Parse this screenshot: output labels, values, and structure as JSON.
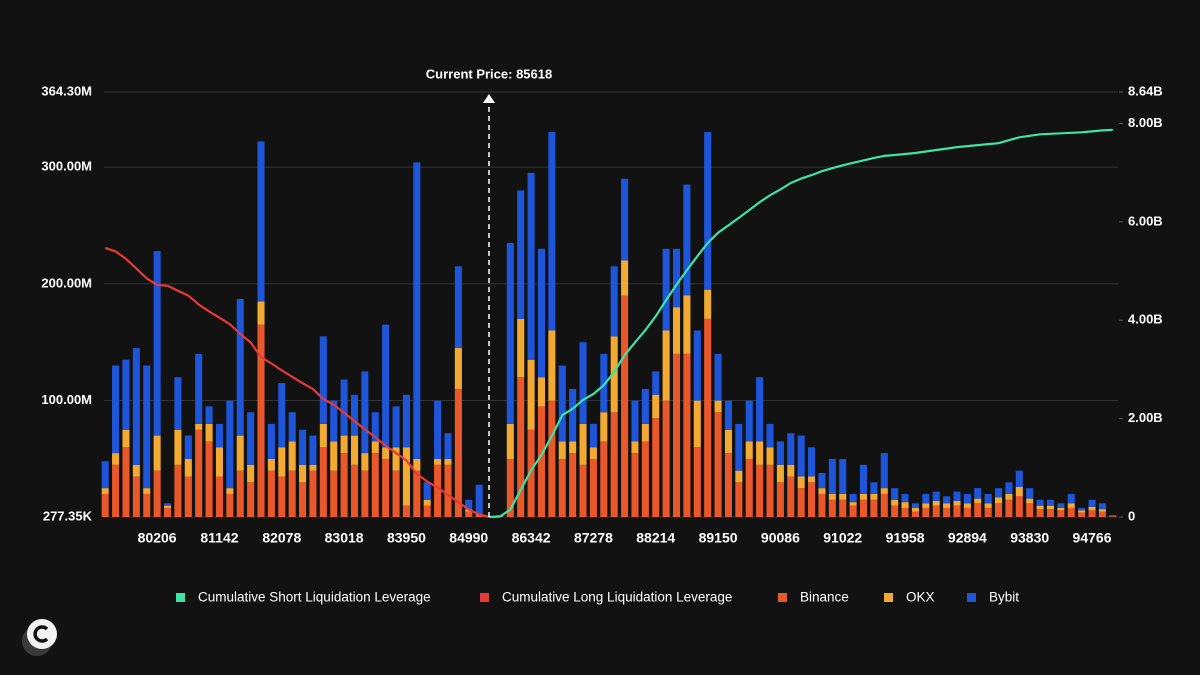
{
  "chart_data": {
    "type": "bar",
    "stacked": true,
    "annotation": "Current Price: 85618",
    "categories": [
      null,
      null,
      null,
      null,
      null,
      "80206",
      null,
      null,
      null,
      null,
      null,
      "81142",
      null,
      null,
      null,
      null,
      null,
      "82078",
      null,
      null,
      null,
      null,
      null,
      "83018",
      null,
      null,
      null,
      null,
      null,
      "83950",
      null,
      null,
      null,
      null,
      null,
      "84990",
      null,
      null,
      null,
      null,
      null,
      "86342",
      null,
      null,
      null,
      null,
      null,
      "87278",
      null,
      null,
      null,
      null,
      null,
      "88214",
      null,
      null,
      null,
      null,
      null,
      "89150",
      null,
      null,
      null,
      null,
      null,
      "90086",
      null,
      null,
      null,
      null,
      null,
      "91022",
      null,
      null,
      null,
      null,
      null,
      "91958",
      null,
      null,
      null,
      null,
      null,
      "92894",
      null,
      null,
      null,
      null,
      null,
      "93830",
      null,
      null,
      null,
      null,
      null,
      "94766",
      null,
      null
    ],
    "ylim": [
      277350,
      364300000
    ],
    "yticks": [
      {
        "value": 277350,
        "label": "277.35K"
      },
      {
        "value": 100000000,
        "label": "100.00M"
      },
      {
        "value": 200000000,
        "label": "200.00M"
      },
      {
        "value": 300000000,
        "label": "300.00M"
      },
      {
        "value": 364300000,
        "label": "364.30M"
      }
    ],
    "y2lim": [
      0,
      8640000000
    ],
    "y2ticks": [
      0,
      {
        "value": 2000000000,
        "label": "2.00B"
      },
      {
        "value": 4000000000,
        "label": "4.00B"
      },
      {
        "value": 6000000000,
        "label": "6.00B"
      },
      {
        "value": 8000000000,
        "label": "8.00B"
      },
      {
        "value": 8640000000,
        "label": "8.64B"
      }
    ],
    "grid": true,
    "legend": "bottom",
    "series": [
      {
        "name": "Cumulative Short Liquidation Leverage",
        "type": "line",
        "axis": "y2",
        "color": "#3ee3a6",
        "values": [
          null,
          null,
          null,
          null,
          null,
          null,
          null,
          null,
          null,
          null,
          null,
          null,
          null,
          null,
          null,
          null,
          null,
          null,
          null,
          null,
          null,
          null,
          null,
          null,
          null,
          null,
          null,
          null,
          null,
          null,
          null,
          null,
          null,
          null,
          null,
          null,
          null,
          0,
          10000000,
          150000000,
          550000000,
          950000000,
          1260000000,
          1650000000,
          2070000000,
          2200000000,
          2380000000,
          2500000000,
          2680000000,
          2950000000,
          3290000000,
          3550000000,
          3800000000,
          4080000000,
          4410000000,
          4720000000,
          5020000000,
          5300000000,
          5570000000,
          5780000000,
          5930000000,
          6080000000,
          6240000000,
          6400000000,
          6540000000,
          6660000000,
          6790000000,
          6880000000,
          6950000000,
          7030000000,
          7090000000,
          7150000000,
          7200000000,
          7250000000,
          7300000000,
          7340000000,
          7360000000,
          7380000000,
          7400000000,
          7430000000,
          7460000000,
          7490000000,
          7520000000,
          7540000000,
          7560000000,
          7580000000,
          7600000000,
          7660000000,
          7720000000,
          7750000000,
          7780000000,
          7790000000,
          7800000000,
          7810000000,
          7820000000,
          7840000000,
          7860000000,
          7870000000
        ]
      },
      {
        "name": "Cumulative Long Liquidation Leverage",
        "type": "line",
        "axis": "y2",
        "color": "#e8393a",
        "values": [
          5470000000,
          5400000000,
          5250000000,
          5050000000,
          4850000000,
          4720000000,
          4700000000,
          4600000000,
          4500000000,
          4320000000,
          4180000000,
          4050000000,
          3920000000,
          3720000000,
          3550000000,
          3250000000,
          3120000000,
          2980000000,
          2850000000,
          2720000000,
          2600000000,
          2400000000,
          2280000000,
          2120000000,
          1950000000,
          1780000000,
          1620000000,
          1450000000,
          1300000000,
          1150000000,
          880000000,
          720000000,
          600000000,
          450000000,
          300000000,
          150000000,
          50000000,
          0,
          null,
          null,
          null,
          null,
          null,
          null,
          null,
          null,
          null,
          null,
          null,
          null,
          null,
          null,
          null,
          null,
          null,
          null,
          null,
          null,
          null,
          null,
          null,
          null,
          null,
          null,
          null,
          null,
          null,
          null,
          null,
          null,
          null,
          null,
          null,
          null,
          null,
          null,
          null,
          null,
          null,
          null,
          null,
          null,
          null,
          null,
          null,
          null,
          null,
          null,
          null,
          null,
          null,
          null,
          null,
          null,
          null,
          null,
          null,
          null
        ]
      },
      {
        "name": "Binance",
        "type": "bar",
        "color": "#e8582a",
        "values": [
          20000000,
          45000000,
          60000000,
          35000000,
          20000000,
          40000000,
          8000000,
          45000000,
          35000000,
          75000000,
          65000000,
          35000000,
          20000000,
          40000000,
          30000000,
          165000000,
          40000000,
          35000000,
          40000000,
          30000000,
          40000000,
          60000000,
          40000000,
          55000000,
          45000000,
          40000000,
          55000000,
          50000000,
          40000000,
          10000000,
          40000000,
          10000000,
          45000000,
          45000000,
          110000000,
          5000000,
          2000000,
          1000000,
          1000000,
          50000000,
          120000000,
          75000000,
          95000000,
          100000000,
          50000000,
          55000000,
          45000000,
          50000000,
          65000000,
          90000000,
          190000000,
          55000000,
          65000000,
          85000000,
          100000000,
          140000000,
          140000000,
          60000000,
          170000000,
          90000000,
          55000000,
          30000000,
          50000000,
          45000000,
          45000000,
          30000000,
          35000000,
          25000000,
          30000000,
          20000000,
          15000000,
          15000000,
          10000000,
          15000000,
          15000000,
          20000000,
          10000000,
          8000000,
          5000000,
          8000000,
          10000000,
          8000000,
          10000000,
          8000000,
          12000000,
          8000000,
          12000000,
          15000000,
          18000000,
          12000000,
          7000000,
          7000000,
          6000000,
          8000000,
          4000000,
          6000000,
          5000000,
          1000000
        ]
      },
      {
        "name": "OKX",
        "type": "bar",
        "color": "#f2aa33",
        "values": [
          5000000,
          10000000,
          15000000,
          10000000,
          5000000,
          30000000,
          2000000,
          30000000,
          15000000,
          5000000,
          15000000,
          25000000,
          5000000,
          30000000,
          15000000,
          20000000,
          10000000,
          25000000,
          25000000,
          15000000,
          5000000,
          20000000,
          25000000,
          15000000,
          25000000,
          15000000,
          10000000,
          10000000,
          20000000,
          50000000,
          10000000,
          5000000,
          5000000,
          5000000,
          35000000,
          2000000,
          1000000,
          0,
          0,
          30000000,
          50000000,
          60000000,
          25000000,
          60000000,
          15000000,
          10000000,
          35000000,
          10000000,
          25000000,
          65000000,
          30000000,
          10000000,
          15000000,
          20000000,
          60000000,
          40000000,
          50000000,
          40000000,
          25000000,
          10000000,
          20000000,
          10000000,
          15000000,
          20000000,
          15000000,
          15000000,
          10000000,
          10000000,
          5000000,
          5000000,
          5000000,
          5000000,
          3000000,
          5000000,
          5000000,
          5000000,
          5000000,
          5000000,
          3000000,
          4000000,
          4000000,
          4000000,
          4000000,
          4000000,
          4000000,
          4000000,
          5000000,
          5000000,
          8000000,
          4000000,
          3000000,
          3000000,
          2000000,
          4000000,
          2000000,
          3000000,
          2000000,
          0
        ]
      },
      {
        "name": "Bybit",
        "type": "bar",
        "color": "#1f55d8",
        "values": [
          23000000,
          75000000,
          60000000,
          100000000,
          105000000,
          158000000,
          2000000,
          45000000,
          20000000,
          60000000,
          15000000,
          20000000,
          75000000,
          117000000,
          45000000,
          137000000,
          30000000,
          55000000,
          25000000,
          30000000,
          25000000,
          75000000,
          35000000,
          48000000,
          35000000,
          70000000,
          25000000,
          105000000,
          35000000,
          45000000,
          254000000,
          15000000,
          50000000,
          22000000,
          70000000,
          8000000,
          25000000,
          0,
          1000000,
          155000000,
          110000000,
          160000000,
          110000000,
          170000000,
          65000000,
          45000000,
          70000000,
          20000000,
          50000000,
          60000000,
          70000000,
          35000000,
          30000000,
          20000000,
          70000000,
          50000000,
          95000000,
          60000000,
          135000000,
          40000000,
          25000000,
          40000000,
          35000000,
          55000000,
          20000000,
          20000000,
          27000000,
          35000000,
          25000000,
          13000000,
          30000000,
          30000000,
          7000000,
          25000000,
          10000000,
          30000000,
          10000000,
          7000000,
          4000000,
          8000000,
          8000000,
          6000000,
          8000000,
          8000000,
          9000000,
          8000000,
          8000000,
          10000000,
          14000000,
          9000000,
          5000000,
          5000000,
          4000000,
          8000000,
          2000000,
          6000000,
          5000000,
          1000000
        ]
      }
    ]
  }
}
